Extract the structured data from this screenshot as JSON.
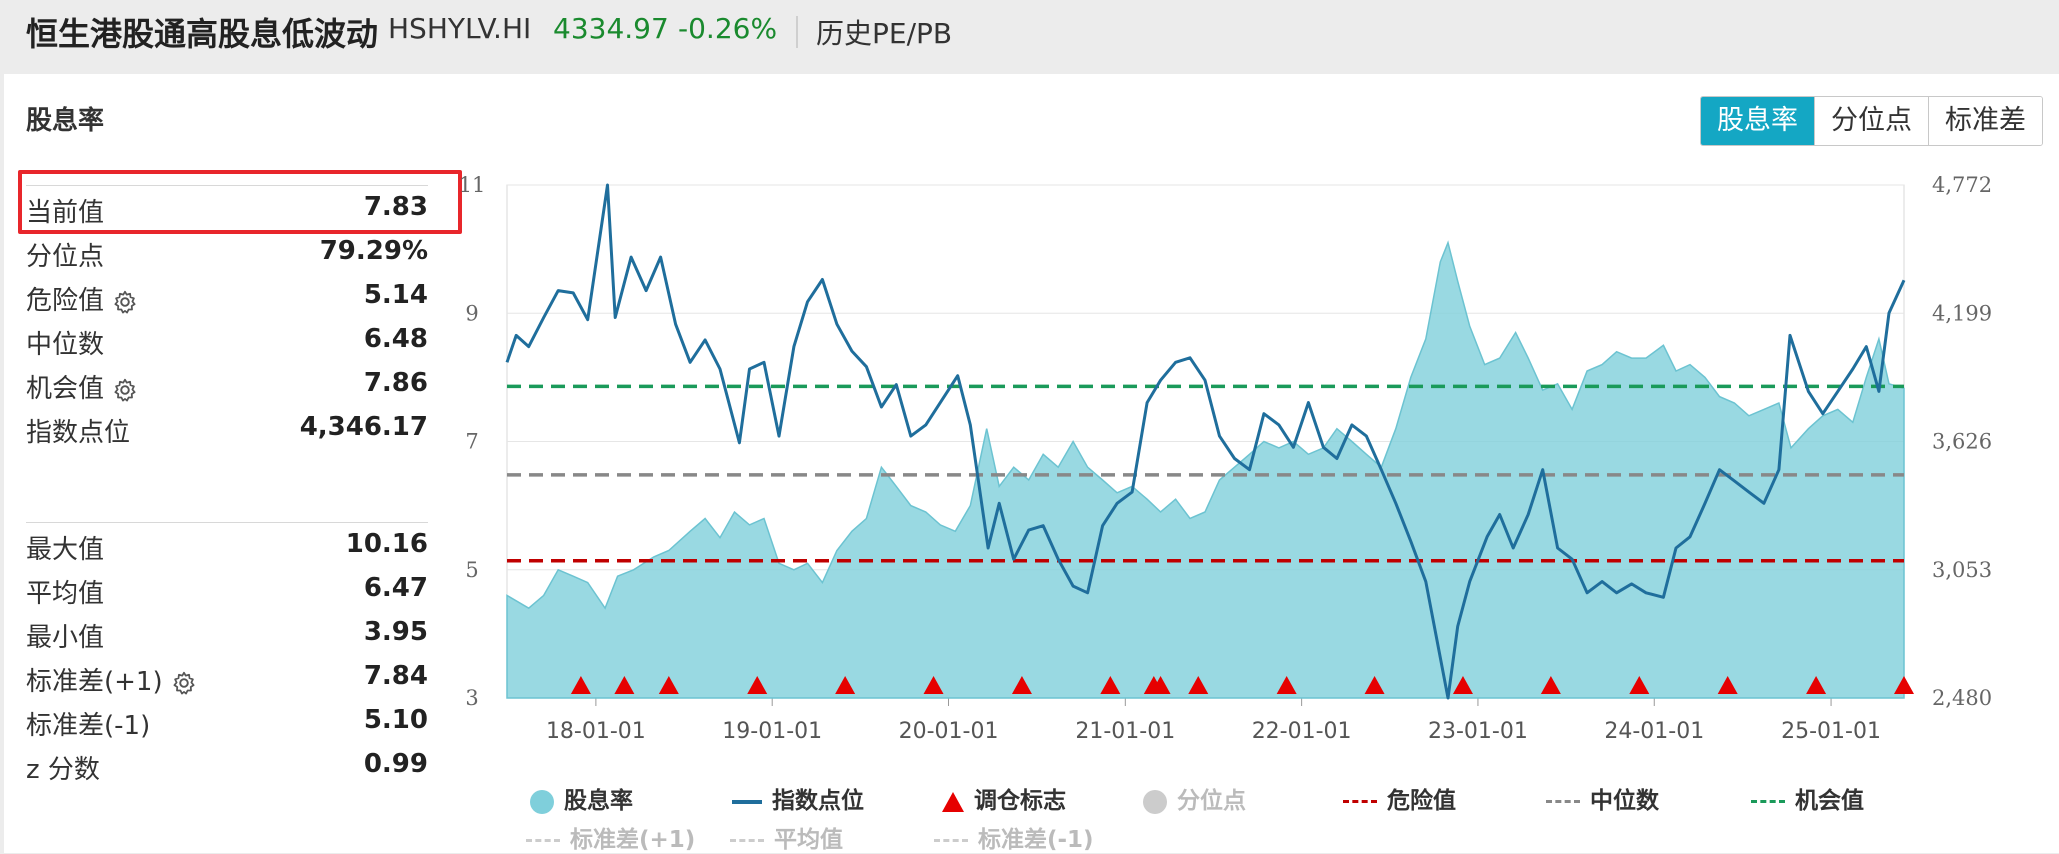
{
  "header": {
    "title": "恒生港股通高股息低波动",
    "code": "HSHYLV.HI",
    "price": "4334.97",
    "change": "-0.26%",
    "history_link": "历史PE/PB",
    "change_color": "#1a8a2e"
  },
  "panel": {
    "title": "股息率",
    "stats_top": [
      {
        "label": "当前值",
        "value": "7.83"
      },
      {
        "label": "分位点",
        "value": "79.29%"
      },
      {
        "label": "危险值",
        "value": "5.14",
        "icon": "gear-icon"
      },
      {
        "label": "中位数",
        "value": "6.48"
      },
      {
        "label": "机会值",
        "value": "7.86",
        "icon": "gear-icon"
      },
      {
        "label": "指数点位",
        "value": "4,346.17"
      }
    ],
    "stats_bottom": [
      {
        "label": "最大值",
        "value": "10.16"
      },
      {
        "label": "平均值",
        "value": "6.47"
      },
      {
        "label": "最小值",
        "value": "3.95"
      },
      {
        "label": "标准差(+1)",
        "value": "7.84",
        "icon": "gear-icon"
      },
      {
        "label": "标准差(-1)",
        "value": "5.10"
      },
      {
        "label": "z 分数",
        "value": "0.99"
      }
    ],
    "highlight_color": "#e8262b"
  },
  "tabs": [
    {
      "label": "股息率",
      "active": true
    },
    {
      "label": "分位点",
      "active": false
    },
    {
      "label": "标准差",
      "active": false
    }
  ],
  "legend": [
    {
      "label": "股息率",
      "type": "dot",
      "color": "#7fcfdb",
      "muted": false
    },
    {
      "label": "指数点位",
      "type": "line",
      "color": "#1f6e9c",
      "muted": false
    },
    {
      "label": "调仓标志",
      "type": "triangle",
      "color": "#e60000",
      "muted": false
    },
    {
      "label": "分位点",
      "type": "dot",
      "color": "#cccccc",
      "muted": true
    },
    {
      "label": "危险值",
      "type": "dash",
      "color": "#c00000",
      "muted": false
    },
    {
      "label": "中位数",
      "type": "dash",
      "color": "#888888",
      "muted": false
    },
    {
      "label": "机会值",
      "type": "dash",
      "color": "#1a9a5a",
      "muted": false
    },
    {
      "label": "标准差(+1)",
      "type": "dash",
      "color": "#cccccc",
      "muted": true
    },
    {
      "label": "平均值",
      "type": "dash",
      "color": "#cccccc",
      "muted": true
    },
    {
      "label": "标准差(-1)",
      "type": "dash",
      "color": "#cccccc",
      "muted": true
    }
  ],
  "chart_data": {
    "type": "area",
    "x_start": "2017-07-01",
    "x_end": "2025-06-01",
    "x_ticks": [
      "18-01-01",
      "19-01-01",
      "20-01-01",
      "21-01-01",
      "22-01-01",
      "23-01-01",
      "24-01-01",
      "25-01-01"
    ],
    "y_left": {
      "ticks": [
        "3",
        "5",
        "7",
        "9",
        "11"
      ],
      "range": [
        3,
        11
      ]
    },
    "y_right": {
      "ticks": [
        "2,480",
        "3,053",
        "3,626",
        "4,199",
        "4,772"
      ],
      "range": [
        2480,
        4772
      ]
    },
    "reference_lines": [
      {
        "name": "危险值",
        "value": 5.14,
        "color": "#c00000"
      },
      {
        "name": "中位数",
        "value": 6.48,
        "color": "#888888"
      },
      {
        "name": "机会值",
        "value": 7.86,
        "color": "#1a9a5a"
      }
    ],
    "series": [
      {
        "name": "股息率",
        "axis": "left",
        "color": "#7fcfdb",
        "points": [
          [
            "2017-07-01",
            4.6
          ],
          [
            "2017-08-15",
            4.4
          ],
          [
            "2017-09-15",
            4.6
          ],
          [
            "2017-10-15",
            5.0
          ],
          [
            "2017-11-15",
            4.9
          ],
          [
            "2017-12-15",
            4.8
          ],
          [
            "2018-01-20",
            4.4
          ],
          [
            "2018-02-15",
            4.9
          ],
          [
            "2018-03-20",
            5.0
          ],
          [
            "2018-05-01",
            5.2
          ],
          [
            "2018-06-01",
            5.3
          ],
          [
            "2018-07-15",
            5.6
          ],
          [
            "2018-08-15",
            5.8
          ],
          [
            "2018-09-15",
            5.5
          ],
          [
            "2018-10-15",
            5.9
          ],
          [
            "2018-11-15",
            5.7
          ],
          [
            "2018-12-15",
            5.8
          ],
          [
            "2019-01-15",
            5.1
          ],
          [
            "2019-02-15",
            5.0
          ],
          [
            "2019-03-15",
            5.1
          ],
          [
            "2019-04-15",
            4.8
          ],
          [
            "2019-05-15",
            5.3
          ],
          [
            "2019-06-15",
            5.6
          ],
          [
            "2019-07-15",
            5.8
          ],
          [
            "2019-08-15",
            6.6
          ],
          [
            "2019-09-15",
            6.3
          ],
          [
            "2019-10-15",
            6.0
          ],
          [
            "2019-11-15",
            5.9
          ],
          [
            "2019-12-15",
            5.7
          ],
          [
            "2020-01-15",
            5.6
          ],
          [
            "2020-02-15",
            6.0
          ],
          [
            "2020-03-20",
            7.2
          ],
          [
            "2020-04-15",
            6.3
          ],
          [
            "2020-05-15",
            6.6
          ],
          [
            "2020-06-15",
            6.4
          ],
          [
            "2020-07-15",
            6.8
          ],
          [
            "2020-08-15",
            6.6
          ],
          [
            "2020-09-15",
            7.0
          ],
          [
            "2020-10-15",
            6.6
          ],
          [
            "2020-11-15",
            6.4
          ],
          [
            "2020-12-15",
            6.2
          ],
          [
            "2021-01-15",
            6.3
          ],
          [
            "2021-02-15",
            6.1
          ],
          [
            "2021-03-15",
            5.9
          ],
          [
            "2021-04-15",
            6.1
          ],
          [
            "2021-05-15",
            5.8
          ],
          [
            "2021-06-15",
            5.9
          ],
          [
            "2021-07-15",
            6.4
          ],
          [
            "2021-08-15",
            6.6
          ],
          [
            "2021-09-15",
            6.8
          ],
          [
            "2021-10-15",
            7.0
          ],
          [
            "2021-11-15",
            6.9
          ],
          [
            "2021-12-15",
            7.0
          ],
          [
            "2022-01-15",
            6.8
          ],
          [
            "2022-02-15",
            6.9
          ],
          [
            "2022-03-15",
            7.2
          ],
          [
            "2022-04-15",
            7.0
          ],
          [
            "2022-05-15",
            6.8
          ],
          [
            "2022-06-15",
            6.6
          ],
          [
            "2022-07-15",
            7.2
          ],
          [
            "2022-08-15",
            8.0
          ],
          [
            "2022-09-15",
            8.6
          ],
          [
            "2022-10-15",
            9.8
          ],
          [
            "2022-10-31",
            10.1
          ],
          [
            "2022-11-20",
            9.5
          ],
          [
            "2022-12-15",
            8.8
          ],
          [
            "2023-01-15",
            8.2
          ],
          [
            "2023-02-15",
            8.3
          ],
          [
            "2023-03-20",
            8.7
          ],
          [
            "2023-04-15",
            8.3
          ],
          [
            "2023-05-15",
            7.8
          ],
          [
            "2023-06-15",
            7.9
          ],
          [
            "2023-07-15",
            7.5
          ],
          [
            "2023-08-15",
            8.1
          ],
          [
            "2023-09-15",
            8.2
          ],
          [
            "2023-10-15",
            8.4
          ],
          [
            "2023-11-15",
            8.3
          ],
          [
            "2023-12-15",
            8.3
          ],
          [
            "2024-01-20",
            8.5
          ],
          [
            "2024-02-15",
            8.1
          ],
          [
            "2024-03-15",
            8.2
          ],
          [
            "2024-04-15",
            8.0
          ],
          [
            "2024-05-15",
            7.7
          ],
          [
            "2024-06-15",
            7.6
          ],
          [
            "2024-07-15",
            7.4
          ],
          [
            "2024-08-15",
            7.5
          ],
          [
            "2024-09-15",
            7.6
          ],
          [
            "2024-10-10",
            6.9
          ],
          [
            "2024-11-15",
            7.2
          ],
          [
            "2024-12-15",
            7.4
          ],
          [
            "2025-01-15",
            7.5
          ],
          [
            "2025-02-15",
            7.3
          ],
          [
            "2025-03-15",
            8.0
          ],
          [
            "2025-04-10",
            8.6
          ],
          [
            "2025-05-01",
            7.9
          ],
          [
            "2025-06-01",
            7.83
          ]
        ]
      },
      {
        "name": "指数点位",
        "axis": "right",
        "color": "#1f6e9c",
        "points": [
          [
            "2017-07-01",
            3980
          ],
          [
            "2017-07-20",
            4100
          ],
          [
            "2017-08-15",
            4050
          ],
          [
            "2017-09-15",
            4180
          ],
          [
            "2017-10-15",
            4300
          ],
          [
            "2017-11-15",
            4290
          ],
          [
            "2017-12-15",
            4170
          ],
          [
            "2018-01-25",
            4772
          ],
          [
            "2018-02-10",
            4180
          ],
          [
            "2018-03-15",
            4450
          ],
          [
            "2018-04-15",
            4300
          ],
          [
            "2018-05-15",
            4450
          ],
          [
            "2018-06-15",
            4150
          ],
          [
            "2018-07-15",
            3980
          ],
          [
            "2018-08-15",
            4080
          ],
          [
            "2018-09-15",
            3950
          ],
          [
            "2018-10-25",
            3620
          ],
          [
            "2018-11-15",
            3950
          ],
          [
            "2018-12-15",
            3980
          ],
          [
            "2019-01-15",
            3650
          ],
          [
            "2019-02-15",
            4050
          ],
          [
            "2019-03-15",
            4250
          ],
          [
            "2019-04-15",
            4350
          ],
          [
            "2019-05-15",
            4150
          ],
          [
            "2019-06-15",
            4030
          ],
          [
            "2019-07-15",
            3960
          ],
          [
            "2019-08-15",
            3780
          ],
          [
            "2019-09-15",
            3880
          ],
          [
            "2019-10-15",
            3650
          ],
          [
            "2019-11-15",
            3700
          ],
          [
            "2019-12-15",
            3800
          ],
          [
            "2020-01-20",
            3920
          ],
          [
            "2020-02-15",
            3700
          ],
          [
            "2020-03-23",
            3150
          ],
          [
            "2020-04-15",
            3350
          ],
          [
            "2020-05-15",
            3100
          ],
          [
            "2020-06-15",
            3230
          ],
          [
            "2020-07-15",
            3250
          ],
          [
            "2020-08-15",
            3100
          ],
          [
            "2020-09-15",
            2980
          ],
          [
            "2020-10-15",
            2950
          ],
          [
            "2020-11-15",
            3250
          ],
          [
            "2020-12-15",
            3350
          ],
          [
            "2021-01-15",
            3400
          ],
          [
            "2021-02-15",
            3800
          ],
          [
            "2021-03-15",
            3900
          ],
          [
            "2021-04-15",
            3980
          ],
          [
            "2021-05-15",
            4000
          ],
          [
            "2021-06-15",
            3900
          ],
          [
            "2021-07-15",
            3650
          ],
          [
            "2021-08-15",
            3550
          ],
          [
            "2021-09-15",
            3500
          ],
          [
            "2021-10-15",
            3750
          ],
          [
            "2021-11-15",
            3700
          ],
          [
            "2021-12-15",
            3600
          ],
          [
            "2022-01-15",
            3800
          ],
          [
            "2022-02-15",
            3600
          ],
          [
            "2022-03-15",
            3550
          ],
          [
            "2022-04-15",
            3700
          ],
          [
            "2022-05-15",
            3650
          ],
          [
            "2022-06-15",
            3500
          ],
          [
            "2022-07-15",
            3350
          ],
          [
            "2022-08-15",
            3180
          ],
          [
            "2022-09-15",
            3000
          ],
          [
            "2022-10-31",
            2480
          ],
          [
            "2022-11-20",
            2800
          ],
          [
            "2022-12-15",
            3000
          ],
          [
            "2023-01-20",
            3200
          ],
          [
            "2023-02-15",
            3300
          ],
          [
            "2023-03-15",
            3150
          ],
          [
            "2023-04-15",
            3300
          ],
          [
            "2023-05-15",
            3500
          ],
          [
            "2023-06-15",
            3150
          ],
          [
            "2023-07-15",
            3100
          ],
          [
            "2023-08-15",
            2950
          ],
          [
            "2023-09-15",
            3000
          ],
          [
            "2023-10-15",
            2950
          ],
          [
            "2023-11-15",
            2990
          ],
          [
            "2023-12-15",
            2950
          ],
          [
            "2024-01-20",
            2930
          ],
          [
            "2024-02-15",
            3150
          ],
          [
            "2024-03-15",
            3200
          ],
          [
            "2024-04-15",
            3350
          ],
          [
            "2024-05-15",
            3500
          ],
          [
            "2024-06-15",
            3450
          ],
          [
            "2024-07-15",
            3400
          ],
          [
            "2024-08-15",
            3350
          ],
          [
            "2024-09-15",
            3500
          ],
          [
            "2024-10-08",
            4100
          ],
          [
            "2024-11-15",
            3850
          ],
          [
            "2024-12-15",
            3750
          ],
          [
            "2025-01-15",
            3850
          ],
          [
            "2025-02-15",
            3950
          ],
          [
            "2025-03-15",
            4050
          ],
          [
            "2025-04-10",
            3850
          ],
          [
            "2025-05-01",
            4200
          ],
          [
            "2025-06-01",
            4346
          ]
        ]
      }
    ],
    "rebalance_markers": [
      "2017-12-01",
      "2018-03-01",
      "2018-06-01",
      "2018-12-01",
      "2019-06-01",
      "2019-12-01",
      "2020-06-01",
      "2020-12-01",
      "2021-03-01",
      "2021-03-15",
      "2021-06-01",
      "2021-12-01",
      "2022-06-01",
      "2022-12-01",
      "2023-06-01",
      "2023-12-01",
      "2024-06-01",
      "2024-12-01",
      "2025-06-01"
    ]
  }
}
